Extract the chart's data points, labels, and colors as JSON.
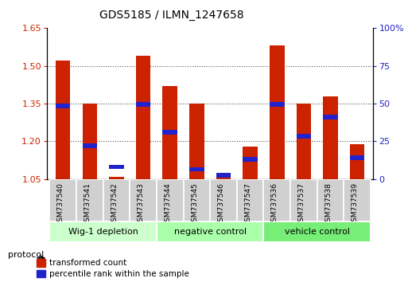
{
  "title": "GDS5185 / ILMN_1247658",
  "samples": [
    "GSM737540",
    "GSM737541",
    "GSM737542",
    "GSM737543",
    "GSM737544",
    "GSM737545",
    "GSM737546",
    "GSM737547",
    "GSM737536",
    "GSM737537",
    "GSM737538",
    "GSM737539"
  ],
  "red_values": [
    1.52,
    1.35,
    1.06,
    1.54,
    1.42,
    1.35,
    1.06,
    1.18,
    1.58,
    1.35,
    1.38,
    1.19
  ],
  "blue_values": [
    48.5,
    22,
    8,
    49.5,
    31,
    6.5,
    2.5,
    13,
    49.5,
    28.5,
    41,
    14
  ],
  "ylim_left": [
    1.05,
    1.65
  ],
  "ylim_right": [
    0,
    100
  ],
  "yticks_left": [
    1.05,
    1.2,
    1.35,
    1.5,
    1.65
  ],
  "yticks_right": [
    0,
    25,
    50,
    75,
    100
  ],
  "ytick_labels_right": [
    "0",
    "25",
    "50",
    "75",
    "100%"
  ],
  "groups": [
    {
      "label": "Wig-1 depletion",
      "start": 0,
      "end": 4,
      "color": "#ccffcc"
    },
    {
      "label": "negative control",
      "start": 4,
      "end": 8,
      "color": "#aaffaa"
    },
    {
      "label": "vehicle control",
      "start": 8,
      "end": 12,
      "color": "#77ee77"
    }
  ],
  "bar_width": 0.55,
  "red_color": "#cc2200",
  "blue_color": "#2222cc",
  "base_value": 1.05,
  "grid_color": "#555555",
  "bg_color": "#ffffff",
  "plot_bg": "#ffffff",
  "tick_label_color_left": "#cc2200",
  "tick_label_color_right": "#2222cc",
  "legend_red_label": "transformed count",
  "legend_blue_label": "percentile rank within the sample",
  "protocol_label": "protocol"
}
